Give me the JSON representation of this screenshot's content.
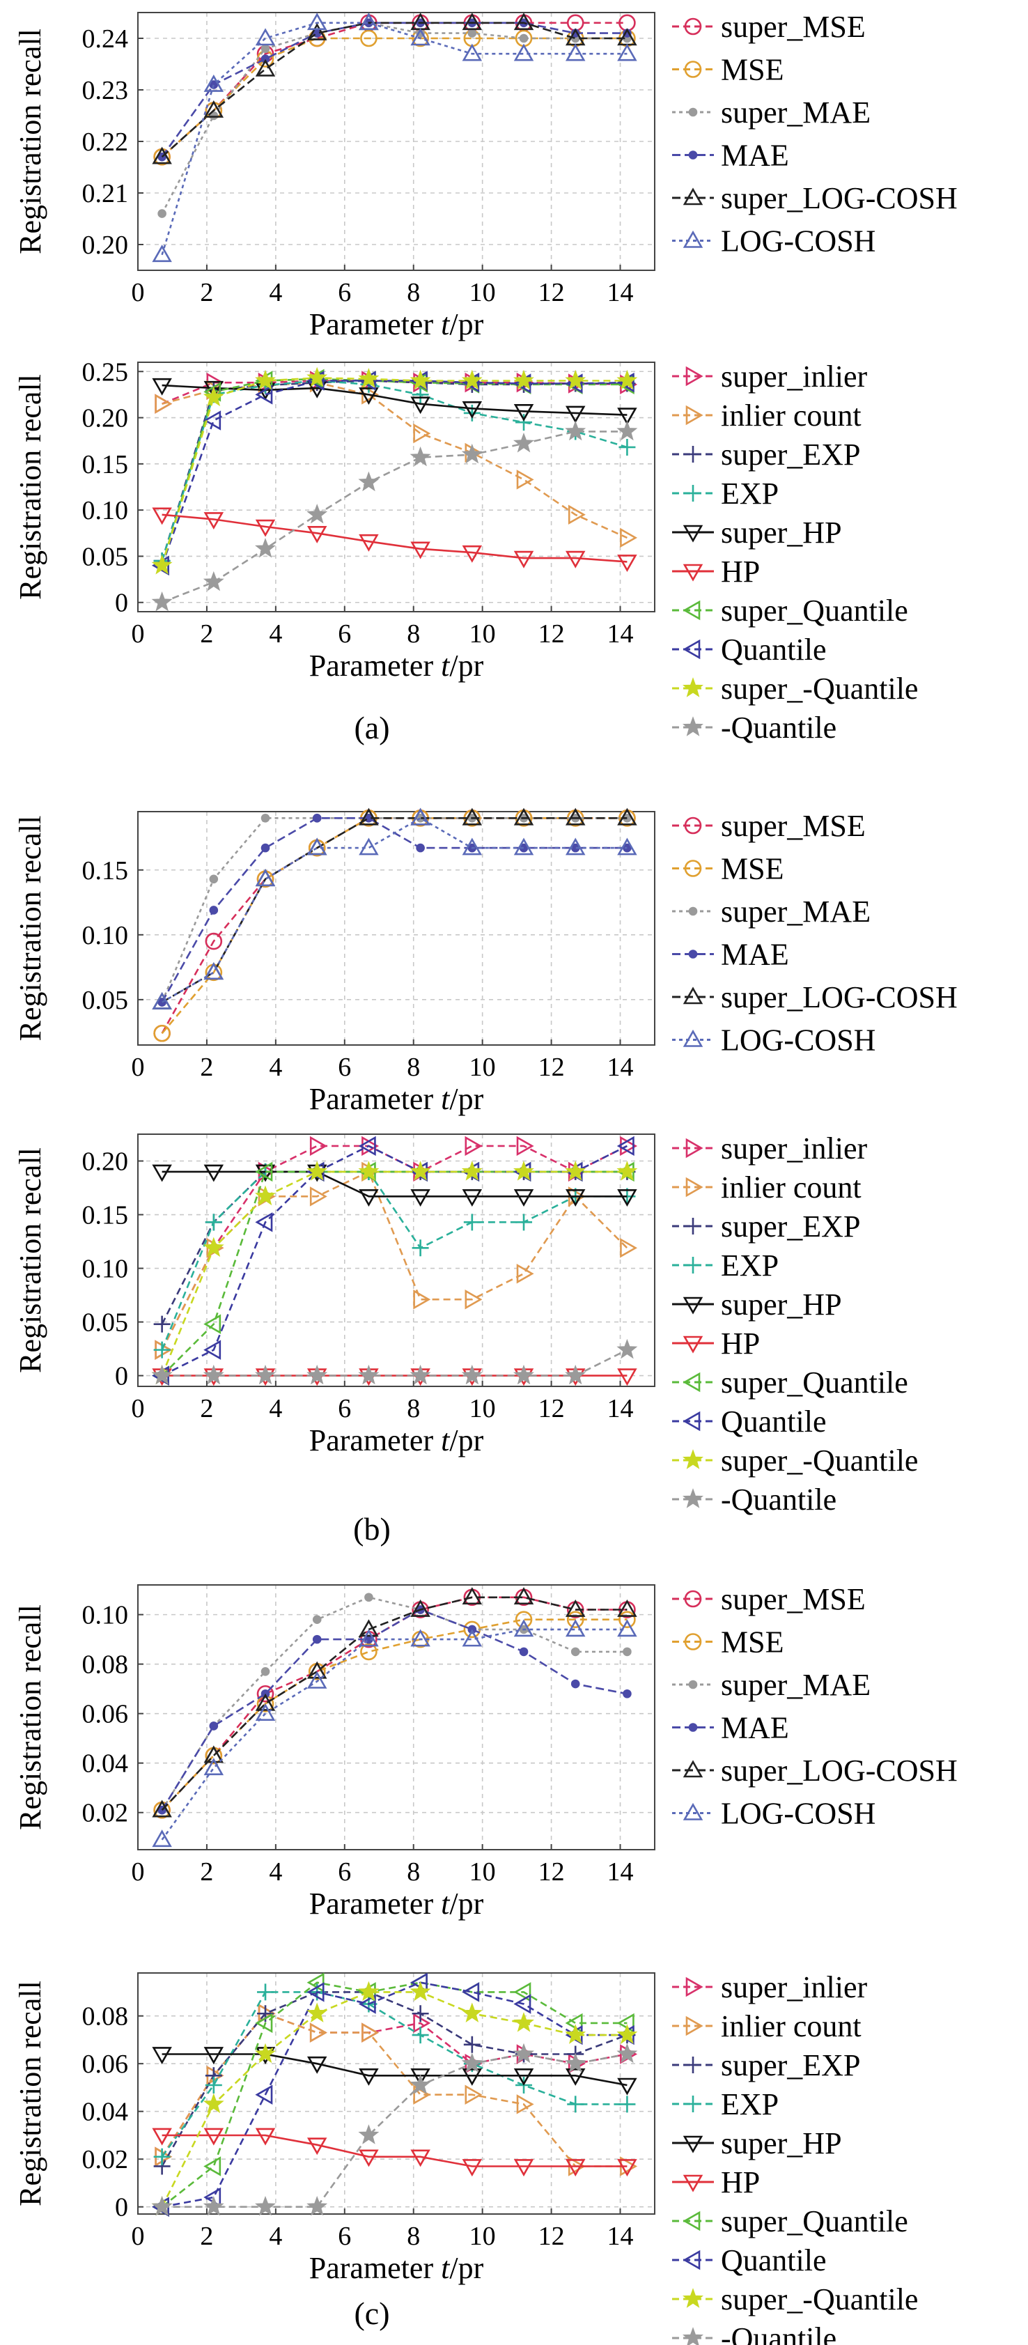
{
  "colors": {
    "super_MSE": "#d62e5a",
    "MSE": "#e0a030",
    "super_MAE": "#9a9a9a",
    "MAE": "#4a4aa8",
    "super_LOG-COSH": "#222222",
    "LOG-COSH": "#5a6ab8",
    "super_inlier": "#d8306a",
    "inlier count": "#e09a50",
    "super_EXP": "#3a3a7a",
    "EXP": "#2ab09a",
    "super_HP": "#111111",
    "HP": "#e0303a",
    "super_Quantile": "#5aba3a",
    "Quantile": "#3a3aa0",
    "super_-Quantile": "#c8d820",
    "-Quantile": "#9a9a9a"
  },
  "captions": [
    "(a)",
    "(b)",
    "(c)"
  ],
  "chart_data": [
    {
      "id": "a-top",
      "type": "line",
      "xlabel": "Parameter t/pr",
      "ylabel": "Registration recall",
      "xlim": [
        0,
        15
      ],
      "xticks": [
        "0",
        "2",
        "4",
        "6",
        "8",
        "10",
        "12",
        "14"
      ],
      "ylim": [
        0.195,
        0.245
      ],
      "yticks": [
        "0.20",
        "0.21",
        "0.22",
        "0.23",
        "0.24"
      ],
      "ytick_values": [
        0.2,
        0.21,
        0.22,
        0.23,
        0.24
      ],
      "x": [
        0.7,
        2.2,
        3.7,
        5.2,
        6.7,
        8.2,
        9.7,
        11.2,
        12.7,
        14.2
      ],
      "series": [
        {
          "name": "super_MSE",
          "marker": "circle",
          "values": [
            0.217,
            0.226,
            0.237,
            0.24,
            0.243,
            0.243,
            0.243,
            0.243,
            0.243,
            0.243
          ]
        },
        {
          "name": "MSE",
          "marker": "circle",
          "values": [
            0.217,
            0.226,
            0.236,
            0.24,
            0.24,
            0.24,
            0.24,
            0.24,
            0.24,
            0.24
          ]
        },
        {
          "name": "super_MAE",
          "marker": "dot",
          "values": [
            0.206,
            0.225,
            0.238,
            0.241,
            0.243,
            0.241,
            0.241,
            0.24,
            0.24,
            0.24
          ]
        },
        {
          "name": "MAE",
          "marker": "dot",
          "values": [
            0.217,
            0.231,
            0.236,
            0.241,
            0.243,
            0.243,
            0.243,
            0.243,
            0.241,
            0.241
          ]
        },
        {
          "name": "super_LOG-COSH",
          "marker": "triangle",
          "values": [
            0.217,
            0.226,
            0.234,
            0.241,
            0.243,
            0.243,
            0.243,
            0.243,
            0.24,
            0.24
          ]
        },
        {
          "name": "LOG-COSH",
          "marker": "triangle",
          "values": [
            0.198,
            0.231,
            0.24,
            0.243,
            0.243,
            0.24,
            0.237,
            0.237,
            0.237,
            0.237
          ]
        }
      ]
    },
    {
      "id": "a-bottom",
      "type": "line",
      "xlabel": "Parameter t/pr",
      "ylabel": "Registration recall",
      "xlim": [
        0,
        15
      ],
      "xticks": [
        "0",
        "2",
        "4",
        "6",
        "8",
        "10",
        "12",
        "14"
      ],
      "ylim": [
        -0.01,
        0.26
      ],
      "yticks": [
        "0",
        "0.05",
        "0.10",
        "0.15",
        "0.20",
        "0.25"
      ],
      "ytick_values": [
        0,
        0.05,
        0.1,
        0.15,
        0.2,
        0.25
      ],
      "x": [
        0.7,
        2.2,
        3.7,
        5.2,
        6.7,
        8.2,
        9.7,
        11.2,
        12.7,
        14.2
      ],
      "series": [
        {
          "name": "super_inlier",
          "marker": "tri-right",
          "values": [
            0.215,
            0.238,
            0.238,
            0.24,
            0.24,
            0.238,
            0.238,
            0.238,
            0.237,
            0.236
          ]
        },
        {
          "name": "inlier count",
          "marker": "tri-right",
          "values": [
            0.215,
            0.23,
            0.235,
            0.238,
            0.225,
            0.183,
            0.162,
            0.133,
            0.095,
            0.07
          ]
        },
        {
          "name": "super_EXP",
          "marker": "plus",
          "values": [
            0.045,
            0.23,
            0.235,
            0.238,
            0.24,
            0.238,
            0.236,
            0.236,
            0.237,
            0.237
          ]
        },
        {
          "name": "EXP",
          "marker": "plus",
          "values": [
            0.045,
            0.225,
            0.235,
            0.24,
            0.236,
            0.225,
            0.205,
            0.195,
            0.185,
            0.168
          ]
        },
        {
          "name": "super_HP",
          "marker": "tri-down",
          "values": [
            0.235,
            0.232,
            0.23,
            0.232,
            0.225,
            0.215,
            0.21,
            0.207,
            0.205,
            0.203
          ]
        },
        {
          "name": "HP",
          "marker": "tri-down",
          "values": [
            0.095,
            0.09,
            0.082,
            0.075,
            0.066,
            0.058,
            0.054,
            0.048,
            0.048,
            0.044
          ]
        },
        {
          "name": "super_Quantile",
          "marker": "tri-left",
          "values": [
            0.04,
            0.228,
            0.24,
            0.242,
            0.24,
            0.238,
            0.237,
            0.236,
            0.236,
            0.236
          ]
        },
        {
          "name": "Quantile",
          "marker": "tri-left",
          "values": [
            0.04,
            0.197,
            0.225,
            0.24,
            0.24,
            0.24,
            0.238,
            0.237,
            0.237,
            0.238
          ]
        },
        {
          "name": "super_-Quantile",
          "marker": "star",
          "values": [
            0.04,
            0.222,
            0.24,
            0.243,
            0.242,
            0.24,
            0.24,
            0.24,
            0.24,
            0.24
          ]
        },
        {
          "name": "-Quantile",
          "marker": "star",
          "values": [
            0.0,
            0.022,
            0.058,
            0.095,
            0.13,
            0.157,
            0.16,
            0.172,
            0.185,
            0.185
          ]
        }
      ]
    },
    {
      "id": "b-top",
      "type": "line",
      "xlabel": "Parameter t/pr",
      "ylabel": "Registration recall",
      "xlim": [
        0,
        15
      ],
      "xticks": [
        "0",
        "2",
        "4",
        "6",
        "8",
        "10",
        "12",
        "14"
      ],
      "ylim": [
        0.015,
        0.195
      ],
      "yticks": [
        "0.05",
        "0.10",
        "0.15"
      ],
      "ytick_values": [
        0.05,
        0.1,
        0.15
      ],
      "x": [
        0.7,
        2.2,
        3.7,
        5.2,
        6.7,
        8.2,
        9.7,
        11.2,
        12.7,
        14.2
      ],
      "series": [
        {
          "name": "super_MSE",
          "marker": "circle",
          "values": [
            0.024,
            0.095,
            0.143,
            0.167,
            0.19,
            0.19,
            0.19,
            0.19,
            0.19,
            0.19
          ]
        },
        {
          "name": "MSE",
          "marker": "circle",
          "values": [
            0.024,
            0.071,
            0.143,
            0.167,
            0.19,
            0.19,
            0.19,
            0.19,
            0.19,
            0.19
          ]
        },
        {
          "name": "super_MAE",
          "marker": "dot",
          "values": [
            0.048,
            0.143,
            0.19,
            0.19,
            0.19,
            0.19,
            0.19,
            0.19,
            0.19,
            0.19
          ]
        },
        {
          "name": "MAE",
          "marker": "dot",
          "values": [
            0.048,
            0.119,
            0.167,
            0.19,
            0.19,
            0.167,
            0.167,
            0.167,
            0.167,
            0.167
          ]
        },
        {
          "name": "super_LOG-COSH",
          "marker": "triangle",
          "values": [
            0.048,
            0.071,
            0.143,
            0.167,
            0.19,
            0.19,
            0.19,
            0.19,
            0.19,
            0.19
          ]
        },
        {
          "name": "LOG-COSH",
          "marker": "triangle",
          "values": [
            0.048,
            0.071,
            0.143,
            0.167,
            0.167,
            0.19,
            0.167,
            0.167,
            0.167,
            0.167
          ]
        }
      ]
    },
    {
      "id": "b-bottom",
      "type": "line",
      "xlabel": "Parameter t/pr",
      "ylabel": "Registration recall",
      "xlim": [
        0,
        15
      ],
      "xticks": [
        "0",
        "2",
        "4",
        "6",
        "8",
        "10",
        "12",
        "14"
      ],
      "ylim": [
        -0.01,
        0.225
      ],
      "yticks": [
        "0",
        "0.05",
        "0.10",
        "0.15",
        "0.20"
      ],
      "ytick_values": [
        0,
        0.05,
        0.1,
        0.15,
        0.2
      ],
      "x": [
        0.7,
        2.2,
        3.7,
        5.2,
        6.7,
        8.2,
        9.7,
        11.2,
        12.7,
        14.2
      ],
      "series": [
        {
          "name": "super_inlier",
          "marker": "tri-right",
          "values": [
            0.024,
            0.119,
            0.19,
            0.214,
            0.214,
            0.19,
            0.214,
            0.214,
            0.19,
            0.214
          ]
        },
        {
          "name": "inlier count",
          "marker": "tri-right",
          "values": [
            0.024,
            0.119,
            0.167,
            0.167,
            0.19,
            0.071,
            0.071,
            0.095,
            0.167,
            0.119
          ]
        },
        {
          "name": "super_EXP",
          "marker": "plus",
          "values": [
            0.048,
            0.143,
            0.19,
            0.19,
            0.19,
            0.19,
            0.19,
            0.19,
            0.19,
            0.19
          ]
        },
        {
          "name": "EXP",
          "marker": "plus",
          "values": [
            0.024,
            0.143,
            0.19,
            0.19,
            0.19,
            0.119,
            0.143,
            0.143,
            0.167,
            0.167
          ]
        },
        {
          "name": "super_HP",
          "marker": "tri-down",
          "values": [
            0.19,
            0.19,
            0.19,
            0.19,
            0.167,
            0.167,
            0.167,
            0.167,
            0.167,
            0.167
          ]
        },
        {
          "name": "HP",
          "marker": "tri-down",
          "values": [
            0.0,
            0.0,
            0.0,
            0.0,
            0.0,
            0.0,
            0.0,
            0.0,
            0.0,
            0.0
          ]
        },
        {
          "name": "super_Quantile",
          "marker": "tri-left",
          "values": [
            0.0,
            0.048,
            0.19,
            0.19,
            0.19,
            0.19,
            0.19,
            0.19,
            0.19,
            0.19
          ]
        },
        {
          "name": "Quantile",
          "marker": "tri-left",
          "values": [
            0.0,
            0.024,
            0.143,
            0.19,
            0.214,
            0.19,
            0.19,
            0.19,
            0.19,
            0.214
          ]
        },
        {
          "name": "super_-Quantile",
          "marker": "star",
          "values": [
            0.0,
            0.119,
            0.167,
            0.19,
            0.19,
            0.19,
            0.19,
            0.19,
            0.19,
            0.19
          ]
        },
        {
          "name": "-Quantile",
          "marker": "star",
          "values": [
            0.0,
            0.0,
            0.0,
            0.0,
            0.0,
            0.0,
            0.0,
            0.0,
            0.0,
            0.024
          ]
        }
      ]
    },
    {
      "id": "c-top",
      "type": "line",
      "xlabel": "Parameter t/pr",
      "ylabel": "Registration recall",
      "xlim": [
        0,
        15
      ],
      "xticks": [
        "0",
        "2",
        "4",
        "6",
        "8",
        "10",
        "12",
        "14"
      ],
      "ylim": [
        0.005,
        0.112
      ],
      "yticks": [
        "0.02",
        "0.04",
        "0.06",
        "0.08",
        "0.10"
      ],
      "ytick_values": [
        0.02,
        0.04,
        0.06,
        0.08,
        0.1
      ],
      "x": [
        0.7,
        2.2,
        3.7,
        5.2,
        6.7,
        8.2,
        9.7,
        11.2,
        12.7,
        14.2
      ],
      "series": [
        {
          "name": "super_MSE",
          "marker": "circle",
          "values": [
            0.021,
            0.043,
            0.068,
            0.077,
            0.09,
            0.102,
            0.107,
            0.107,
            0.102,
            0.102
          ]
        },
        {
          "name": "MSE",
          "marker": "circle",
          "values": [
            0.021,
            0.043,
            0.064,
            0.077,
            0.085,
            0.09,
            0.094,
            0.098,
            0.098,
            0.098
          ]
        },
        {
          "name": "super_MAE",
          "marker": "dot",
          "values": [
            0.021,
            0.055,
            0.077,
            0.098,
            0.107,
            0.102,
            0.094,
            0.094,
            0.085,
            0.085
          ]
        },
        {
          "name": "MAE",
          "marker": "dot",
          "values": [
            0.021,
            0.055,
            0.068,
            0.09,
            0.09,
            0.102,
            0.094,
            0.085,
            0.072,
            0.068
          ]
        },
        {
          "name": "super_LOG-COSH",
          "marker": "triangle",
          "values": [
            0.021,
            0.043,
            0.064,
            0.077,
            0.094,
            0.102,
            0.107,
            0.107,
            0.102,
            0.102
          ]
        },
        {
          "name": "LOG-COSH",
          "marker": "triangle",
          "values": [
            0.009,
            0.038,
            0.06,
            0.073,
            0.09,
            0.09,
            0.09,
            0.094,
            0.094,
            0.094
          ]
        }
      ]
    },
    {
      "id": "c-bottom",
      "type": "line",
      "xlabel": "Parameter t/pr",
      "ylabel": "Registration recall",
      "xlim": [
        0,
        15
      ],
      "xticks": [
        "0",
        "2",
        "4",
        "6",
        "8",
        "10",
        "12",
        "14"
      ],
      "ylim": [
        -0.003,
        0.098
      ],
      "yticks": [
        "0",
        "0.02",
        "0.04",
        "0.06",
        "0.08"
      ],
      "ytick_values": [
        0,
        0.02,
        0.04,
        0.06,
        0.08
      ],
      "x": [
        0.7,
        2.2,
        3.7,
        5.2,
        6.7,
        8.2,
        9.7,
        11.2,
        12.7,
        14.2
      ],
      "series": [
        {
          "name": "super_inlier",
          "marker": "tri-right",
          "values": [
            0.021,
            0.055,
            0.081,
            0.073,
            0.073,
            0.077,
            0.06,
            0.064,
            0.06,
            0.064
          ]
        },
        {
          "name": "inlier count",
          "marker": "tri-right",
          "values": [
            0.021,
            0.055,
            0.081,
            0.073,
            0.073,
            0.047,
            0.047,
            0.043,
            0.017,
            0.017
          ]
        },
        {
          "name": "super_EXP",
          "marker": "plus",
          "values": [
            0.017,
            0.055,
            0.081,
            0.09,
            0.09,
            0.081,
            0.068,
            0.064,
            0.064,
            0.072
          ]
        },
        {
          "name": "EXP",
          "marker": "plus",
          "values": [
            0.021,
            0.051,
            0.09,
            0.09,
            0.085,
            0.072,
            0.06,
            0.051,
            0.043,
            0.043
          ]
        },
        {
          "name": "super_HP",
          "marker": "tri-down",
          "values": [
            0.064,
            0.064,
            0.064,
            0.06,
            0.055,
            0.055,
            0.055,
            0.055,
            0.055,
            0.051
          ]
        },
        {
          "name": "HP",
          "marker": "tri-down",
          "values": [
            0.03,
            0.03,
            0.03,
            0.026,
            0.021,
            0.021,
            0.017,
            0.017,
            0.017,
            0.017
          ]
        },
        {
          "name": "super_Quantile",
          "marker": "tri-left",
          "values": [
            0.0,
            0.017,
            0.077,
            0.094,
            0.09,
            0.094,
            0.09,
            0.09,
            0.077,
            0.077
          ]
        },
        {
          "name": "Quantile",
          "marker": "tri-left",
          "values": [
            0.0,
            0.004,
            0.047,
            0.09,
            0.085,
            0.094,
            0.09,
            0.085,
            0.072,
            0.072
          ]
        },
        {
          "name": "super_-Quantile",
          "marker": "star",
          "values": [
            0.0,
            0.043,
            0.064,
            0.081,
            0.09,
            0.09,
            0.081,
            0.077,
            0.072,
            0.072
          ]
        },
        {
          "name": "-Quantile",
          "marker": "star",
          "values": [
            0.0,
            0.0,
            0.0,
            0.0,
            0.03,
            0.051,
            0.06,
            0.064,
            0.06,
            0.064
          ]
        }
      ]
    }
  ]
}
